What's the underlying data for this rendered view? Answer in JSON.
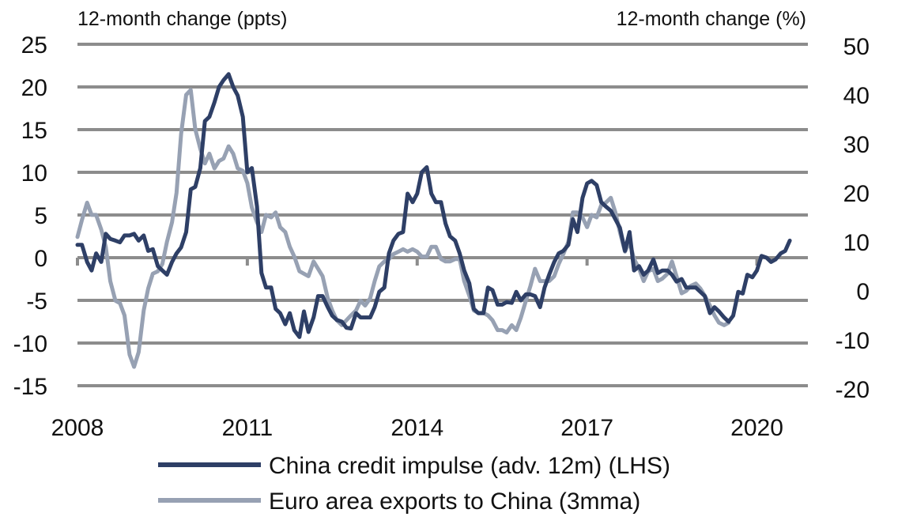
{
  "chart_data": {
    "type": "line",
    "left_axis_title": "12-month change (ppts)",
    "right_axis_title": "12-month change (%)",
    "x_ticks": [
      "2008",
      "2011",
      "2014",
      "2017",
      "2020"
    ],
    "left_ticks": [
      "25",
      "20",
      "15",
      "10",
      "5",
      "0",
      "-5",
      "-10",
      "-15"
    ],
    "right_ticks": [
      "50",
      "40",
      "30",
      "20",
      "10",
      "0",
      "-10",
      "-20"
    ],
    "ylim_left": [
      -15,
      25
    ],
    "ylim_right": [
      -20,
      50
    ],
    "xlim": [
      2008.0,
      2020.9
    ],
    "grid": true,
    "legend_position": "bottom",
    "colors": {
      "series1": "#2e3f66",
      "series2": "#97a1b3",
      "grid": "#8c8c8c"
    },
    "series": [
      {
        "name": "China credit impulse (adv. 12m) (LHS)",
        "axis": "left",
        "points": [
          [
            2008.0,
            1.5
          ],
          [
            2008.08,
            1.5
          ],
          [
            2008.17,
            -0.5
          ],
          [
            2008.25,
            -1.5
          ],
          [
            2008.33,
            0.5
          ],
          [
            2008.42,
            -0.5
          ],
          [
            2008.5,
            2.8
          ],
          [
            2008.58,
            2.2
          ],
          [
            2008.67,
            2.0
          ],
          [
            2008.75,
            1.8
          ],
          [
            2008.83,
            2.6
          ],
          [
            2008.92,
            2.6
          ],
          [
            2009.0,
            2.8
          ],
          [
            2009.08,
            2.0
          ],
          [
            2009.17,
            2.6
          ],
          [
            2009.25,
            0.8
          ],
          [
            2009.33,
            1.0
          ],
          [
            2009.42,
            -1.0
          ],
          [
            2009.5,
            -1.5
          ],
          [
            2009.58,
            -2.0
          ],
          [
            2009.67,
            -0.5
          ],
          [
            2009.75,
            0.5
          ],
          [
            2009.83,
            1.2
          ],
          [
            2009.92,
            3.0
          ],
          [
            2010.0,
            8.0
          ],
          [
            2010.08,
            8.3
          ],
          [
            2010.17,
            10.5
          ],
          [
            2010.25,
            16.0
          ],
          [
            2010.33,
            16.5
          ],
          [
            2010.42,
            18.2
          ],
          [
            2010.5,
            20.0
          ],
          [
            2010.58,
            20.8
          ],
          [
            2010.67,
            21.5
          ],
          [
            2010.75,
            20.0
          ],
          [
            2010.83,
            19.0
          ],
          [
            2010.92,
            16.5
          ],
          [
            2011.0,
            10.0
          ],
          [
            2011.08,
            10.5
          ],
          [
            2011.17,
            6.0
          ],
          [
            2011.25,
            -1.8
          ],
          [
            2011.33,
            -3.5
          ],
          [
            2011.42,
            -3.5
          ],
          [
            2011.5,
            -6.0
          ],
          [
            2011.58,
            -6.5
          ],
          [
            2011.67,
            -7.8
          ],
          [
            2011.75,
            -6.5
          ],
          [
            2011.83,
            -8.5
          ],
          [
            2011.92,
            -9.3
          ],
          [
            2012.0,
            -6.3
          ],
          [
            2012.08,
            -8.7
          ],
          [
            2012.17,
            -7.0
          ],
          [
            2012.25,
            -4.5
          ],
          [
            2012.33,
            -4.5
          ],
          [
            2012.42,
            -5.8
          ],
          [
            2012.5,
            -6.8
          ],
          [
            2012.58,
            -7.3
          ],
          [
            2012.67,
            -7.5
          ],
          [
            2012.75,
            -8.2
          ],
          [
            2012.83,
            -8.3
          ],
          [
            2012.92,
            -6.5
          ],
          [
            2013.0,
            -7.0
          ],
          [
            2013.08,
            -7.0
          ],
          [
            2013.17,
            -7.0
          ],
          [
            2013.25,
            -5.8
          ],
          [
            2013.33,
            -4.0
          ],
          [
            2013.42,
            -3.5
          ],
          [
            2013.5,
            0.5
          ],
          [
            2013.58,
            2.0
          ],
          [
            2013.67,
            2.8
          ],
          [
            2013.75,
            3.0
          ],
          [
            2013.83,
            7.5
          ],
          [
            2013.92,
            6.5
          ],
          [
            2014.0,
            7.5
          ],
          [
            2014.08,
            10.0
          ],
          [
            2014.17,
            10.6
          ],
          [
            2014.25,
            7.5
          ],
          [
            2014.33,
            6.5
          ],
          [
            2014.42,
            6.5
          ],
          [
            2014.5,
            4.0
          ],
          [
            2014.58,
            2.5
          ],
          [
            2014.67,
            2.0
          ],
          [
            2014.75,
            0.5
          ],
          [
            2014.83,
            -1.5
          ],
          [
            2014.92,
            -3.0
          ],
          [
            2015.0,
            -6.0
          ],
          [
            2015.08,
            -6.5
          ],
          [
            2015.17,
            -6.5
          ],
          [
            2015.25,
            -3.5
          ],
          [
            2015.33,
            -3.8
          ],
          [
            2015.42,
            -5.5
          ],
          [
            2015.5,
            -5.5
          ],
          [
            2015.58,
            -5.2
          ],
          [
            2015.67,
            -5.3
          ],
          [
            2015.75,
            -4.0
          ],
          [
            2015.83,
            -5.0
          ],
          [
            2015.92,
            -4.3
          ],
          [
            2016.0,
            -4.3
          ],
          [
            2016.08,
            -4.5
          ],
          [
            2016.17,
            -5.8
          ],
          [
            2016.25,
            -3.5
          ],
          [
            2016.33,
            -2.0
          ],
          [
            2016.42,
            -0.5
          ],
          [
            2016.5,
            0.5
          ],
          [
            2016.58,
            0.8
          ],
          [
            2016.67,
            1.5
          ],
          [
            2016.75,
            4.5
          ],
          [
            2016.83,
            3.0
          ],
          [
            2016.92,
            7.0
          ],
          [
            2017.0,
            8.7
          ],
          [
            2017.08,
            9.0
          ],
          [
            2017.17,
            8.5
          ],
          [
            2017.25,
            6.5
          ],
          [
            2017.33,
            6.0
          ],
          [
            2017.42,
            5.5
          ],
          [
            2017.5,
            4.5
          ],
          [
            2017.58,
            3.5
          ],
          [
            2017.67,
            0.8
          ],
          [
            2017.75,
            3.0
          ],
          [
            2017.83,
            -1.5
          ],
          [
            2017.92,
            -1.0
          ],
          [
            2018.0,
            -2.0
          ],
          [
            2018.08,
            -1.5
          ],
          [
            2018.17,
            -0.2
          ],
          [
            2018.25,
            -1.8
          ],
          [
            2018.33,
            -1.5
          ],
          [
            2018.42,
            -1.5
          ],
          [
            2018.5,
            -2.0
          ],
          [
            2018.58,
            -2.8
          ],
          [
            2018.67,
            -2.5
          ],
          [
            2018.75,
            -3.5
          ],
          [
            2018.83,
            -3.5
          ],
          [
            2018.92,
            -3.5
          ],
          [
            2019.0,
            -4.0
          ],
          [
            2019.08,
            -4.5
          ],
          [
            2019.17,
            -6.5
          ],
          [
            2019.25,
            -5.8
          ],
          [
            2019.33,
            -6.3
          ],
          [
            2019.42,
            -7.0
          ],
          [
            2019.5,
            -7.5
          ],
          [
            2019.58,
            -6.8
          ],
          [
            2019.67,
            -4.0
          ],
          [
            2019.75,
            -4.2
          ],
          [
            2019.83,
            -2.0
          ],
          [
            2019.92,
            -2.3
          ],
          [
            2020.0,
            -1.5
          ],
          [
            2020.08,
            0.2
          ],
          [
            2020.17,
            0.0
          ],
          [
            2020.25,
            -0.5
          ],
          [
            2020.33,
            -0.2
          ],
          [
            2020.42,
            0.5
          ],
          [
            2020.5,
            0.8
          ],
          [
            2020.58,
            2.0
          ]
        ]
      },
      {
        "name": "Euro area exports to China (3mma)",
        "axis": "right",
        "points": [
          [
            2008.0,
            11.0
          ],
          [
            2008.08,
            14.5
          ],
          [
            2008.17,
            18.0
          ],
          [
            2008.25,
            15.5
          ],
          [
            2008.33,
            15.5
          ],
          [
            2008.42,
            12.5
          ],
          [
            2008.5,
            9.0
          ],
          [
            2008.58,
            2.0
          ],
          [
            2008.67,
            -2.0
          ],
          [
            2008.75,
            -2.5
          ],
          [
            2008.83,
            -5.0
          ],
          [
            2008.92,
            -13.0
          ],
          [
            2009.0,
            -15.5
          ],
          [
            2009.08,
            -12.5
          ],
          [
            2009.17,
            -4.0
          ],
          [
            2009.25,
            0.5
          ],
          [
            2009.33,
            3.5
          ],
          [
            2009.42,
            4.0
          ],
          [
            2009.5,
            5.5
          ],
          [
            2009.58,
            10.0
          ],
          [
            2009.67,
            14.0
          ],
          [
            2009.75,
            20.0
          ],
          [
            2009.83,
            32.0
          ],
          [
            2009.92,
            40.0
          ],
          [
            2010.0,
            41.0
          ],
          [
            2010.08,
            33.0
          ],
          [
            2010.17,
            29.0
          ],
          [
            2010.25,
            26.0
          ],
          [
            2010.33,
            28.0
          ],
          [
            2010.42,
            25.0
          ],
          [
            2010.5,
            26.5
          ],
          [
            2010.58,
            27.0
          ],
          [
            2010.67,
            29.5
          ],
          [
            2010.75,
            28.0
          ],
          [
            2010.83,
            25.0
          ],
          [
            2010.92,
            24.5
          ],
          [
            2011.0,
            22.0
          ],
          [
            2011.08,
            17.0
          ],
          [
            2011.17,
            14.0
          ],
          [
            2011.25,
            12.0
          ],
          [
            2011.33,
            15.5
          ],
          [
            2011.42,
            15.0
          ],
          [
            2011.5,
            16.0
          ],
          [
            2011.58,
            13.0
          ],
          [
            2011.67,
            12.0
          ],
          [
            2011.75,
            9.0
          ],
          [
            2011.83,
            7.0
          ],
          [
            2011.92,
            4.0
          ],
          [
            2012.0,
            3.5
          ],
          [
            2012.08,
            3.0
          ],
          [
            2012.17,
            6.0
          ],
          [
            2012.25,
            4.5
          ],
          [
            2012.33,
            3.0
          ],
          [
            2012.42,
            -1.5
          ],
          [
            2012.5,
            -4.0
          ],
          [
            2012.58,
            -6.0
          ],
          [
            2012.67,
            -7.0
          ],
          [
            2012.75,
            -6.0
          ],
          [
            2012.83,
            -5.0
          ],
          [
            2012.92,
            -4.0
          ],
          [
            2013.0,
            -2.0
          ],
          [
            2013.08,
            -3.0
          ],
          [
            2013.17,
            -1.5
          ],
          [
            2013.25,
            2.0
          ],
          [
            2013.33,
            5.0
          ],
          [
            2013.42,
            6.0
          ],
          [
            2013.5,
            6.5
          ],
          [
            2013.58,
            7.5
          ],
          [
            2013.67,
            8.0
          ],
          [
            2013.75,
            8.5
          ],
          [
            2013.83,
            8.0
          ],
          [
            2013.92,
            8.5
          ],
          [
            2014.0,
            8.0
          ],
          [
            2014.08,
            7.0
          ],
          [
            2014.17,
            7.0
          ],
          [
            2014.25,
            9.0
          ],
          [
            2014.33,
            9.0
          ],
          [
            2014.42,
            6.5
          ],
          [
            2014.5,
            6.0
          ],
          [
            2014.58,
            6.0
          ],
          [
            2014.67,
            6.5
          ],
          [
            2014.75,
            6.5
          ],
          [
            2014.83,
            2.0
          ],
          [
            2014.92,
            -1.0
          ],
          [
            2015.0,
            -4.0
          ],
          [
            2015.08,
            -4.5
          ],
          [
            2015.17,
            -4.5
          ],
          [
            2015.25,
            -5.0
          ],
          [
            2015.33,
            -6.0
          ],
          [
            2015.42,
            -8.0
          ],
          [
            2015.5,
            -8.0
          ],
          [
            2015.58,
            -8.5
          ],
          [
            2015.67,
            -7.0
          ],
          [
            2015.75,
            -8.0
          ],
          [
            2015.83,
            -5.5
          ],
          [
            2015.92,
            -2.0
          ],
          [
            2016.0,
            1.0
          ],
          [
            2016.08,
            4.5
          ],
          [
            2016.17,
            2.0
          ],
          [
            2016.25,
            2.0
          ],
          [
            2016.33,
            2.0
          ],
          [
            2016.42,
            3.0
          ],
          [
            2016.5,
            5.5
          ],
          [
            2016.58,
            7.5
          ],
          [
            2016.67,
            10.0
          ],
          [
            2016.75,
            16.0
          ],
          [
            2016.83,
            16.0
          ],
          [
            2016.92,
            15.0
          ],
          [
            2017.0,
            13.0
          ],
          [
            2017.08,
            15.5
          ],
          [
            2017.17,
            15.0
          ],
          [
            2017.25,
            17.5
          ],
          [
            2017.33,
            18.0
          ],
          [
            2017.42,
            19.0
          ],
          [
            2017.5,
            16.0
          ],
          [
            2017.58,
            12.0
          ],
          [
            2017.67,
            8.0
          ],
          [
            2017.75,
            10.0
          ],
          [
            2017.83,
            6.5
          ],
          [
            2017.92,
            4.5
          ],
          [
            2018.0,
            2.0
          ],
          [
            2018.08,
            4.0
          ],
          [
            2018.17,
            4.5
          ],
          [
            2018.25,
            2.0
          ],
          [
            2018.33,
            2.5
          ],
          [
            2018.42,
            3.5
          ],
          [
            2018.5,
            6.0
          ],
          [
            2018.58,
            3.0
          ],
          [
            2018.67,
            -0.5
          ],
          [
            2018.75,
            0.0
          ],
          [
            2018.83,
            1.0
          ],
          [
            2018.92,
            1.5
          ],
          [
            2019.0,
            0.5
          ],
          [
            2019.08,
            -1.0
          ],
          [
            2019.17,
            -3.0
          ],
          [
            2019.25,
            -5.0
          ],
          [
            2019.33,
            -6.5
          ],
          [
            2019.42,
            -7.0
          ],
          [
            2019.5,
            -6.5
          ]
        ]
      }
    ]
  }
}
